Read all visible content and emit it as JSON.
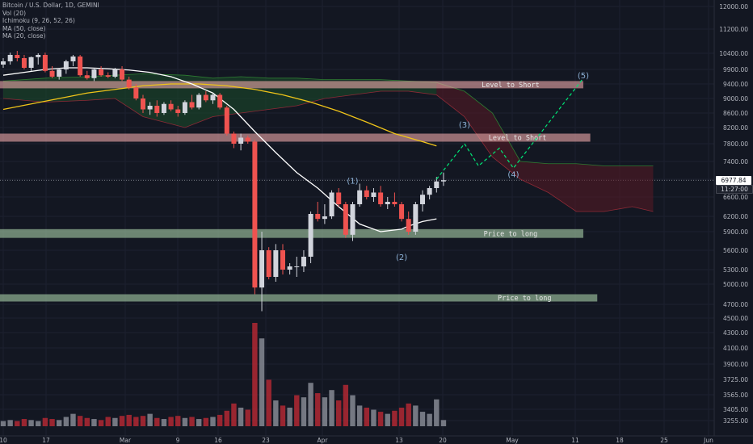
{
  "header": {
    "symbol_line": "Bitcoin / U.S. Dollar, 1D, GEMINI",
    "indicators": [
      "Vol (20)",
      "Ichimoku (9, 26, 52, 26)",
      "MA (50, close)",
      "MA (20, close)"
    ]
  },
  "price_axis": {
    "ticks": [
      "12000.00",
      "11200.00",
      "10400.00",
      "9900.00",
      "9400.00",
      "9000.00",
      "8600.00",
      "8200.00",
      "7800.00",
      "7400.00",
      "7000.00",
      "6600.00",
      "6200.00",
      "5900.00",
      "5600.00",
      "5300.00",
      "5000.00",
      "4700.00",
      "4500.00",
      "4300.00",
      "4100.00",
      "3900.00",
      "3725.00",
      "3565.00",
      "3405.00",
      "3255.00"
    ],
    "last_price": "6977.84",
    "countdown": "11:27:00"
  },
  "time_axis": {
    "ticks": [
      "10",
      "17",
      "Mar",
      "9",
      "16",
      "23",
      "Apr",
      "13",
      "20",
      "May",
      "11",
      "18",
      "25",
      "Jun"
    ]
  },
  "colors": {
    "background": "#131722",
    "up_candle": "#d1d4dc",
    "down_candle": "#ef5350",
    "volume_up": "#868993",
    "volume_down": "#b22833",
    "ma20": "#ffffff",
    "ma50": "#f0c419",
    "short_zone": "#e6a4a4",
    "long_zone": "#a3c9a3",
    "zone_text": "#e8e8e8",
    "projection": "#00e676"
  },
  "chart_data": {
    "type": "candlestick",
    "title": "Bitcoin / U.S. Dollar, 1D, GEMINI",
    "y_scale": "log",
    "ylim": [
      3100,
      12500
    ],
    "x_range": [
      "Feb 8",
      "Jun 1"
    ],
    "last_price": 6977.84,
    "candles": [
      {
        "o": 10050,
        "h": 10250,
        "l": 9950,
        "c": 10150
      },
      {
        "o": 10150,
        "h": 10420,
        "l": 10050,
        "c": 10350
      },
      {
        "o": 10350,
        "h": 10480,
        "l": 10150,
        "c": 10250
      },
      {
        "o": 10250,
        "h": 10350,
        "l": 9900,
        "c": 9950
      },
      {
        "o": 9950,
        "h": 10300,
        "l": 9850,
        "c": 10280
      },
      {
        "o": 10280,
        "h": 10400,
        "l": 10050,
        "c": 10350
      },
      {
        "o": 10350,
        "h": 10420,
        "l": 9800,
        "c": 9850
      },
      {
        "o": 9850,
        "h": 10000,
        "l": 9600,
        "c": 9650
      },
      {
        "o": 9650,
        "h": 9950,
        "l": 9550,
        "c": 9900
      },
      {
        "o": 9900,
        "h": 10200,
        "l": 9750,
        "c": 10150
      },
      {
        "o": 10150,
        "h": 10350,
        "l": 10000,
        "c": 10300
      },
      {
        "o": 10300,
        "h": 10350,
        "l": 9650,
        "c": 9700
      },
      {
        "o": 9700,
        "h": 9850,
        "l": 9550,
        "c": 9600
      },
      {
        "o": 9600,
        "h": 9950,
        "l": 9500,
        "c": 9900
      },
      {
        "o": 9900,
        "h": 10000,
        "l": 9650,
        "c": 9700
      },
      {
        "o": 9700,
        "h": 9800,
        "l": 9600,
        "c": 9650
      },
      {
        "o": 9650,
        "h": 9950,
        "l": 9600,
        "c": 9900
      },
      {
        "o": 9900,
        "h": 10000,
        "l": 9500,
        "c": 9550
      },
      {
        "o": 9550,
        "h": 9650,
        "l": 9250,
        "c": 9300
      },
      {
        "o": 9300,
        "h": 9400,
        "l": 8950,
        "c": 9000
      },
      {
        "o": 9000,
        "h": 9100,
        "l": 8600,
        "c": 8700
      },
      {
        "o": 8700,
        "h": 8900,
        "l": 8550,
        "c": 8800
      },
      {
        "o": 8800,
        "h": 8950,
        "l": 8500,
        "c": 8600
      },
      {
        "o": 8600,
        "h": 8900,
        "l": 8550,
        "c": 8850
      },
      {
        "o": 8850,
        "h": 8950,
        "l": 8650,
        "c": 8700
      },
      {
        "o": 8700,
        "h": 8800,
        "l": 8500,
        "c": 8600
      },
      {
        "o": 8600,
        "h": 8950,
        "l": 8550,
        "c": 8900
      },
      {
        "o": 8900,
        "h": 9100,
        "l": 8700,
        "c": 8750
      },
      {
        "o": 8750,
        "h": 9150,
        "l": 8700,
        "c": 9100
      },
      {
        "o": 9100,
        "h": 9200,
        "l": 8900,
        "c": 8950
      },
      {
        "o": 8950,
        "h": 9150,
        "l": 8850,
        "c": 9100
      },
      {
        "o": 9100,
        "h": 9150,
        "l": 8700,
        "c": 8750
      },
      {
        "o": 8750,
        "h": 8800,
        "l": 8000,
        "c": 8050
      },
      {
        "o": 8050,
        "h": 8100,
        "l": 7700,
        "c": 7800
      },
      {
        "o": 7800,
        "h": 8050,
        "l": 7650,
        "c": 7950
      },
      {
        "o": 7950,
        "h": 8000,
        "l": 7800,
        "c": 7850
      },
      {
        "o": 7850,
        "h": 7900,
        "l": 4850,
        "c": 4950
      },
      {
        "o": 4950,
        "h": 5900,
        "l": 4600,
        "c": 5600
      },
      {
        "o": 5600,
        "h": 5650,
        "l": 5100,
        "c": 5150
      },
      {
        "o": 5150,
        "h": 5700,
        "l": 5050,
        "c": 5600
      },
      {
        "o": 5600,
        "h": 5700,
        "l": 5200,
        "c": 5300
      },
      {
        "o": 5300,
        "h": 5400,
        "l": 5200,
        "c": 5350
      },
      {
        "o": 5350,
        "h": 5500,
        "l": 5150,
        "c": 5350
      },
      {
        "o": 5350,
        "h": 5600,
        "l": 5250,
        "c": 5500
      },
      {
        "o": 5500,
        "h": 6300,
        "l": 5400,
        "c": 6250
      },
      {
        "o": 6250,
        "h": 6500,
        "l": 6100,
        "c": 6150
      },
      {
        "o": 6150,
        "h": 6450,
        "l": 6050,
        "c": 6200
      },
      {
        "o": 6200,
        "h": 6750,
        "l": 6150,
        "c": 6700
      },
      {
        "o": 6700,
        "h": 6800,
        "l": 6400,
        "c": 6450
      },
      {
        "o": 6450,
        "h": 6500,
        "l": 5800,
        "c": 5850
      },
      {
        "o": 5850,
        "h": 6500,
        "l": 5750,
        "c": 6450
      },
      {
        "o": 6450,
        "h": 6900,
        "l": 6400,
        "c": 6750
      },
      {
        "o": 6750,
        "h": 6850,
        "l": 6550,
        "c": 6600
      },
      {
        "o": 6600,
        "h": 6800,
        "l": 6500,
        "c": 6700
      },
      {
        "o": 6700,
        "h": 6850,
        "l": 6400,
        "c": 6450
      },
      {
        "o": 6450,
        "h": 6600,
        "l": 6350,
        "c": 6500
      },
      {
        "o": 6500,
        "h": 6700,
        "l": 6400,
        "c": 6450
      },
      {
        "o": 6450,
        "h": 6500,
        "l": 6100,
        "c": 6150
      },
      {
        "o": 6150,
        "h": 6300,
        "l": 5850,
        "c": 5900
      },
      {
        "o": 5900,
        "h": 6500,
        "l": 5850,
        "c": 6450
      },
      {
        "o": 6450,
        "h": 6750,
        "l": 6300,
        "c": 6650
      },
      {
        "o": 6650,
        "h": 6850,
        "l": 6550,
        "c": 6800
      },
      {
        "o": 6800,
        "h": 7050,
        "l": 6700,
        "c": 6950
      },
      {
        "o": 6950,
        "h": 7150,
        "l": 6850,
        "c": 6978
      }
    ],
    "volume_level": [
      0.05,
      0.06,
      0.05,
      0.07,
      0.06,
      0.05,
      0.08,
      0.07,
      0.06,
      0.09,
      0.12,
      0.1,
      0.08,
      0.07,
      0.06,
      0.09,
      0.08,
      0.1,
      0.11,
      0.09,
      0.1,
      0.12,
      0.08,
      0.07,
      0.09,
      0.1,
      0.08,
      0.09,
      0.07,
      0.08,
      0.09,
      0.11,
      0.15,
      0.22,
      0.18,
      0.16,
      1.0,
      0.85,
      0.45,
      0.25,
      0.2,
      0.18,
      0.3,
      0.28,
      0.42,
      0.32,
      0.28,
      0.35,
      0.25,
      0.4,
      0.3,
      0.2,
      0.18,
      0.16,
      0.14,
      0.12,
      0.15,
      0.18,
      0.22,
      0.2,
      0.14,
      0.12,
      0.26,
      0.06
    ],
    "volume_up": [
      true,
      true,
      false,
      false,
      true,
      true,
      false,
      false,
      true,
      true,
      true,
      false,
      false,
      true,
      false,
      false,
      true,
      false,
      false,
      false,
      false,
      true,
      false,
      true,
      false,
      false,
      true,
      false,
      true,
      false,
      true,
      false,
      false,
      false,
      true,
      false,
      false,
      true,
      false,
      true,
      false,
      true,
      false,
      true,
      true,
      false,
      true,
      true,
      false,
      false,
      true,
      true,
      false,
      true,
      false,
      true,
      false,
      false,
      false,
      true,
      true,
      true,
      true,
      true
    ],
    "ma20": [
      [
        0,
        9700
      ],
      [
        3,
        9800
      ],
      [
        6,
        9900
      ],
      [
        9,
        9950
      ],
      [
        12,
        9950
      ],
      [
        15,
        9920
      ],
      [
        18,
        9880
      ],
      [
        21,
        9800
      ],
      [
        24,
        9650
      ],
      [
        27,
        9400
      ],
      [
        30,
        9150
      ],
      [
        33,
        8700
      ],
      [
        36,
        8100
      ],
      [
        39,
        7600
      ],
      [
        42,
        7150
      ],
      [
        45,
        6800
      ],
      [
        48,
        6400
      ],
      [
        51,
        6050
      ],
      [
        54,
        5900
      ],
      [
        57,
        5950
      ],
      [
        58,
        6010
      ],
      [
        60,
        6100
      ],
      [
        62,
        6150
      ]
    ],
    "ma50": [
      [
        0,
        8700
      ],
      [
        4,
        8850
      ],
      [
        8,
        9000
      ],
      [
        12,
        9150
      ],
      [
        16,
        9250
      ],
      [
        20,
        9350
      ],
      [
        24,
        9400
      ],
      [
        28,
        9400
      ],
      [
        32,
        9350
      ],
      [
        36,
        9250
      ],
      [
        40,
        9100
      ],
      [
        44,
        8900
      ],
      [
        48,
        8650
      ],
      [
        52,
        8350
      ],
      [
        56,
        8050
      ],
      [
        60,
        7850
      ],
      [
        62,
        7750
      ]
    ],
    "levels": [
      {
        "label": "Level to Short",
        "low": 9300,
        "high": 9500,
        "x_end_day": 83
      },
      {
        "label": "Level to Short",
        "low": 7850,
        "high": 8050,
        "x_end_day": 84
      },
      {
        "label": "Price to long",
        "low": 5800,
        "high": 5950,
        "x_end_day": 83
      },
      {
        "label": "Price to long",
        "low": 4750,
        "high": 4850,
        "x_end_day": 85
      }
    ],
    "wave_labels": [
      {
        "label": "(1)",
        "x_day": 50,
        "y": 6900
      },
      {
        "label": "(2)",
        "x_day": 57,
        "y": 5450
      },
      {
        "label": "(3)",
        "x_day": 66,
        "y": 8200
      },
      {
        "label": "(4)",
        "x_day": 73,
        "y": 7050
      },
      {
        "label": "(5)",
        "x_day": 83,
        "y": 9600
      }
    ],
    "projection": [
      [
        62,
        7000
      ],
      [
        66,
        7800
      ],
      [
        68,
        7300
      ],
      [
        71,
        7700
      ],
      [
        73,
        7250
      ],
      [
        83,
        9600
      ]
    ],
    "ichimoku_cloud": {
      "days": [
        0,
        6,
        12,
        16,
        20,
        26,
        30,
        34,
        38,
        42,
        46,
        50,
        54,
        58,
        62,
        66,
        70,
        74,
        78,
        82,
        86,
        90,
        93
      ],
      "upper": [
        9500,
        9600,
        9650,
        9700,
        9750,
        9700,
        9600,
        9650,
        9600,
        9600,
        9550,
        9550,
        9550,
        9500,
        9450,
        9200,
        8600,
        7400,
        7350,
        7350,
        7300,
        7300,
        7300
      ],
      "lower": [
        9000,
        8900,
        8950,
        9000,
        8500,
        8200,
        8500,
        8600,
        8700,
        8800,
        9000,
        9100,
        9200,
        9200,
        9100,
        8500,
        7500,
        7000,
        6700,
        6300,
        6300,
        6400,
        6300
      ],
      "bull_until_day": 62
    }
  }
}
